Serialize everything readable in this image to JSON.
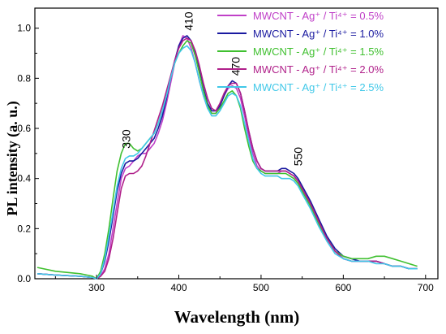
{
  "chart_data": {
    "type": "line",
    "xlabel": "Wavelength (nm)",
    "ylabel": "PL intensity (a. u.)",
    "xlim": [
      225,
      715
    ],
    "ylim": [
      0,
      1.08
    ],
    "xticks": [
      "300",
      "400",
      "500",
      "600",
      "700"
    ],
    "yticks": [
      "0.0",
      "0.2",
      "0.4",
      "0.6",
      "0.8",
      "1.0"
    ],
    "annotations": [
      {
        "text": "330",
        "x": 336,
        "y": 0.52
      },
      {
        "text": "410",
        "x": 412,
        "y": 0.99
      },
      {
        "text": "470",
        "x": 469,
        "y": 0.81
      },
      {
        "text": "550",
        "x": 545,
        "y": 0.45
      }
    ],
    "legend_position": "top-right",
    "series": [
      {
        "name": "MWCNT - Ag⁺ / Ti⁴⁺ = 0.5%",
        "color": "#c040c8",
        "x": [
          228,
          250,
          280,
          295,
          300,
          305,
          310,
          315,
          320,
          325,
          330,
          335,
          340,
          345,
          350,
          355,
          360,
          365,
          370,
          375,
          380,
          385,
          390,
          395,
          400,
          405,
          410,
          415,
          420,
          425,
          430,
          435,
          440,
          445,
          450,
          455,
          460,
          465,
          470,
          475,
          480,
          485,
          490,
          495,
          500,
          505,
          510,
          515,
          520,
          525,
          530,
          535,
          540,
          545,
          550,
          560,
          570,
          580,
          590,
          600,
          610,
          620,
          630,
          640,
          650,
          660,
          670,
          680,
          690
        ],
        "y": [
          0.02,
          0.015,
          0.01,
          0.005,
          0.0,
          0.01,
          0.04,
          0.1,
          0.2,
          0.3,
          0.4,
          0.44,
          0.45,
          0.47,
          0.49,
          0.5,
          0.5,
          0.52,
          0.54,
          0.58,
          0.63,
          0.7,
          0.78,
          0.86,
          0.93,
          0.97,
          0.96,
          0.92,
          0.86,
          0.79,
          0.73,
          0.68,
          0.66,
          0.66,
          0.69,
          0.73,
          0.76,
          0.77,
          0.76,
          0.72,
          0.65,
          0.57,
          0.5,
          0.45,
          0.43,
          0.42,
          0.42,
          0.42,
          0.42,
          0.43,
          0.43,
          0.42,
          0.41,
          0.39,
          0.36,
          0.3,
          0.23,
          0.16,
          0.11,
          0.08,
          0.07,
          0.07,
          0.07,
          0.07,
          0.06,
          0.05,
          0.05,
          0.04,
          0.04
        ]
      },
      {
        "name": "MWCNT - Ag⁺ / Ti⁴⁺ = 1.0%",
        "color": "#1a1aa0",
        "x": [
          228,
          250,
          280,
          295,
          300,
          305,
          310,
          315,
          320,
          325,
          330,
          335,
          340,
          345,
          350,
          355,
          360,
          365,
          370,
          375,
          380,
          385,
          390,
          395,
          400,
          405,
          410,
          415,
          420,
          425,
          430,
          435,
          440,
          445,
          450,
          455,
          460,
          465,
          470,
          475,
          480,
          485,
          490,
          495,
          500,
          505,
          510,
          515,
          520,
          525,
          530,
          535,
          540,
          545,
          550,
          560,
          570,
          580,
          590,
          600,
          610,
          620,
          630,
          640,
          650,
          660,
          670,
          680,
          690
        ],
        "y": [
          0.02,
          0.015,
          0.01,
          0.005,
          0.0,
          0.02,
          0.07,
          0.15,
          0.25,
          0.35,
          0.42,
          0.46,
          0.47,
          0.47,
          0.48,
          0.5,
          0.52,
          0.54,
          0.56,
          0.6,
          0.65,
          0.72,
          0.8,
          0.87,
          0.93,
          0.96,
          0.97,
          0.95,
          0.9,
          0.83,
          0.76,
          0.7,
          0.67,
          0.67,
          0.69,
          0.73,
          0.77,
          0.79,
          0.78,
          0.74,
          0.67,
          0.59,
          0.52,
          0.47,
          0.44,
          0.43,
          0.43,
          0.43,
          0.43,
          0.44,
          0.44,
          0.43,
          0.42,
          0.4,
          0.37,
          0.31,
          0.24,
          0.17,
          0.12,
          0.09,
          0.08,
          0.07,
          0.07,
          0.07,
          0.06,
          0.05,
          0.05,
          0.04,
          0.04
        ]
      },
      {
        "name": "MWCNT - Ag⁺ / Ti⁴⁺ = 1.5%",
        "color": "#40c030",
        "x": [
          228,
          250,
          280,
          295,
          300,
          305,
          310,
          315,
          320,
          325,
          330,
          335,
          340,
          345,
          350,
          355,
          360,
          365,
          370,
          375,
          380,
          385,
          390,
          395,
          400,
          405,
          410,
          415,
          420,
          425,
          430,
          435,
          440,
          445,
          450,
          455,
          460,
          465,
          470,
          475,
          480,
          485,
          490,
          495,
          500,
          505,
          510,
          515,
          520,
          525,
          530,
          535,
          540,
          545,
          550,
          560,
          570,
          580,
          590,
          600,
          610,
          620,
          630,
          640,
          650,
          660,
          670,
          680,
          690
        ],
        "y": [
          0.045,
          0.03,
          0.02,
          0.01,
          0.0,
          0.03,
          0.1,
          0.2,
          0.32,
          0.43,
          0.5,
          0.54,
          0.54,
          0.52,
          0.51,
          0.52,
          0.54,
          0.56,
          0.58,
          0.62,
          0.67,
          0.73,
          0.8,
          0.86,
          0.9,
          0.93,
          0.95,
          0.94,
          0.89,
          0.82,
          0.75,
          0.69,
          0.66,
          0.66,
          0.68,
          0.71,
          0.74,
          0.75,
          0.73,
          0.68,
          0.6,
          0.53,
          0.47,
          0.44,
          0.43,
          0.42,
          0.42,
          0.42,
          0.42,
          0.42,
          0.42,
          0.41,
          0.4,
          0.38,
          0.35,
          0.29,
          0.22,
          0.16,
          0.11,
          0.09,
          0.08,
          0.08,
          0.08,
          0.09,
          0.09,
          0.08,
          0.07,
          0.06,
          0.05
        ]
      },
      {
        "name": "MWCNT - Ag⁺ / Ti⁴⁺ = 2.0%",
        "color": "#b0208a",
        "x": [
          228,
          250,
          280,
          295,
          300,
          305,
          310,
          315,
          320,
          325,
          330,
          335,
          340,
          345,
          350,
          355,
          360,
          365,
          370,
          375,
          380,
          385,
          390,
          395,
          400,
          405,
          410,
          415,
          420,
          425,
          430,
          435,
          440,
          445,
          450,
          455,
          460,
          465,
          470,
          475,
          480,
          485,
          490,
          495,
          500,
          505,
          510,
          515,
          520,
          525,
          530,
          535,
          540,
          545,
          550,
          560,
          570,
          580,
          590,
          600,
          610,
          620,
          630,
          640,
          650,
          660,
          670,
          680,
          690
        ],
        "y": [
          0.02,
          0.015,
          0.01,
          0.005,
          0.0,
          0.01,
          0.03,
          0.08,
          0.16,
          0.26,
          0.36,
          0.41,
          0.42,
          0.42,
          0.43,
          0.45,
          0.49,
          0.54,
          0.59,
          0.64,
          0.69,
          0.75,
          0.81,
          0.87,
          0.92,
          0.95,
          0.96,
          0.95,
          0.91,
          0.85,
          0.78,
          0.72,
          0.68,
          0.67,
          0.7,
          0.74,
          0.77,
          0.78,
          0.78,
          0.74,
          0.67,
          0.59,
          0.52,
          0.47,
          0.44,
          0.43,
          0.43,
          0.43,
          0.43,
          0.43,
          0.43,
          0.42,
          0.41,
          0.39,
          0.36,
          0.3,
          0.23,
          0.16,
          0.11,
          0.08,
          0.07,
          0.07,
          0.07,
          0.07,
          0.06,
          0.05,
          0.05,
          0.04,
          0.04
        ]
      },
      {
        "name": "MWCNT - Ag⁺ / Ti⁴⁺ = 2.5%",
        "color": "#40c8e8",
        "x": [
          228,
          250,
          280,
          295,
          300,
          305,
          310,
          315,
          320,
          325,
          330,
          335,
          340,
          345,
          350,
          355,
          360,
          365,
          370,
          375,
          380,
          385,
          390,
          395,
          400,
          405,
          410,
          415,
          420,
          425,
          430,
          435,
          440,
          445,
          450,
          455,
          460,
          465,
          470,
          475,
          480,
          485,
          490,
          495,
          500,
          505,
          510,
          515,
          520,
          525,
          530,
          535,
          540,
          545,
          550,
          560,
          570,
          580,
          590,
          600,
          610,
          620,
          630,
          640,
          650,
          660,
          670,
          680,
          690
        ],
        "y": [
          0.02,
          0.015,
          0.01,
          0.005,
          0.0,
          0.02,
          0.08,
          0.17,
          0.27,
          0.37,
          0.44,
          0.48,
          0.49,
          0.49,
          0.5,
          0.52,
          0.54,
          0.56,
          0.58,
          0.62,
          0.67,
          0.73,
          0.8,
          0.86,
          0.9,
          0.92,
          0.93,
          0.91,
          0.86,
          0.79,
          0.73,
          0.68,
          0.65,
          0.65,
          0.67,
          0.7,
          0.73,
          0.74,
          0.73,
          0.69,
          0.62,
          0.55,
          0.48,
          0.44,
          0.42,
          0.41,
          0.41,
          0.41,
          0.41,
          0.4,
          0.4,
          0.4,
          0.39,
          0.37,
          0.34,
          0.28,
          0.21,
          0.15,
          0.1,
          0.08,
          0.07,
          0.07,
          0.07,
          0.06,
          0.06,
          0.05,
          0.05,
          0.04,
          0.04
        ]
      }
    ]
  }
}
